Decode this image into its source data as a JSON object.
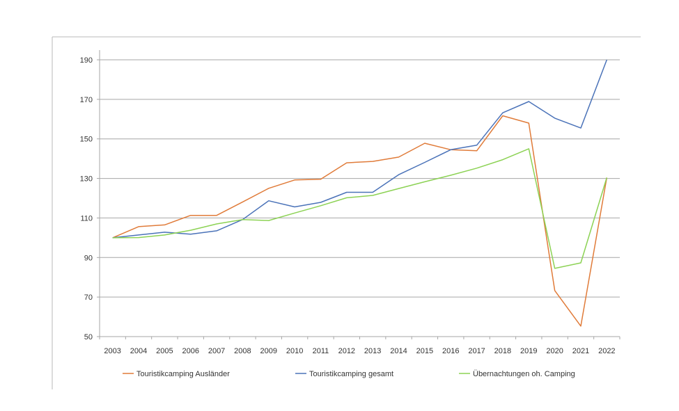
{
  "chart_data": {
    "type": "line",
    "title": "",
    "xlabel": "",
    "ylabel": "",
    "categories": [
      "2003",
      "2004",
      "2005",
      "2006",
      "2007",
      "2008",
      "2009",
      "2010",
      "2011",
      "2012",
      "2013",
      "2014",
      "2015",
      "2016",
      "2017",
      "2018",
      "2019",
      "2020",
      "2021",
      "2022"
    ],
    "ylim": [
      50,
      190
    ],
    "yticks": [
      50,
      70,
      90,
      110,
      130,
      150,
      170,
      190
    ],
    "grid": true,
    "legend_position": "bottom",
    "series": [
      {
        "name": "Touristikcamping Ausländer",
        "color": "#E07B39",
        "values": [
          100,
          105.6,
          106.5,
          111.3,
          111.3,
          118.1,
          125.0,
          129.2,
          129.6,
          137.9,
          138.6,
          140.8,
          147.8,
          144.5,
          144.0,
          161.7,
          158.0,
          73.3,
          55.3,
          130.4
        ]
      },
      {
        "name": "Touristikcamping gesamt",
        "color": "#4A72B8",
        "values": [
          100,
          101.4,
          102.8,
          101.8,
          103.5,
          109.2,
          118.7,
          115.6,
          117.9,
          123.0,
          123.0,
          131.9,
          138.1,
          144.5,
          146.8,
          163.2,
          168.9,
          160.5,
          155.5,
          190.0
        ]
      },
      {
        "name": "Übernachtungen oh. Camping",
        "color": "#8CD254",
        "values": [
          100,
          100.1,
          101.4,
          103.8,
          107.0,
          109.2,
          108.7,
          112.5,
          116.2,
          120.2,
          121.4,
          124.9,
          128.3,
          131.6,
          135.2,
          139.5,
          145.0,
          84.5,
          87.3,
          130.4
        ]
      }
    ]
  }
}
